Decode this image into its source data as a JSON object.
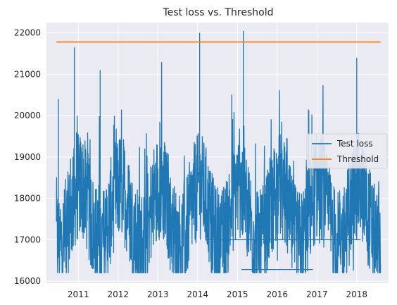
{
  "chart_data": {
    "type": "line",
    "title": "Test loss vs. Threshold",
    "xlabel": "",
    "ylabel": "",
    "x_tick_labels": [
      "2011",
      "2012",
      "2013",
      "2014",
      "2015",
      "2016",
      "2017",
      "2018"
    ],
    "y_tick_labels": [
      "16000",
      "17000",
      "18000",
      "19000",
      "20000",
      "21000",
      "22000"
    ],
    "xlim": [
      2010.2,
      2018.8
    ],
    "ylim": [
      15950,
      22250
    ],
    "grid": true,
    "legend_position": "center-right",
    "style": {
      "background": "#eaeaf2",
      "grid_color": "#ffffff"
    },
    "series": [
      {
        "name": "Test loss",
        "color": "#1f77b4",
        "x_range": [
          2010.45,
          2018.6
        ],
        "y_range": [
          16200,
          22050
        ],
        "baseline": 17600,
        "spikes": [
          {
            "x": 2010.5,
            "y": 20400
          },
          {
            "x": 2010.9,
            "y": 21650
          },
          {
            "x": 2011.55,
            "y": 21100
          },
          {
            "x": 2014.05,
            "y": 22000
          },
          {
            "x": 2015.15,
            "y": 22050
          },
          {
            "x": 2018.0,
            "y": 21400
          }
        ],
        "flat_segments": [
          {
            "x_start": 2015.1,
            "x_end": 2016.9,
            "y": 16280
          },
          {
            "x_start": 2014.2,
            "x_end": 2018.1,
            "y": 17000
          }
        ]
      },
      {
        "name": "Threshold",
        "color": "#ff7f0e",
        "x": [
          2010.45,
          2018.6
        ],
        "values": [
          21780,
          21780
        ]
      }
    ]
  }
}
